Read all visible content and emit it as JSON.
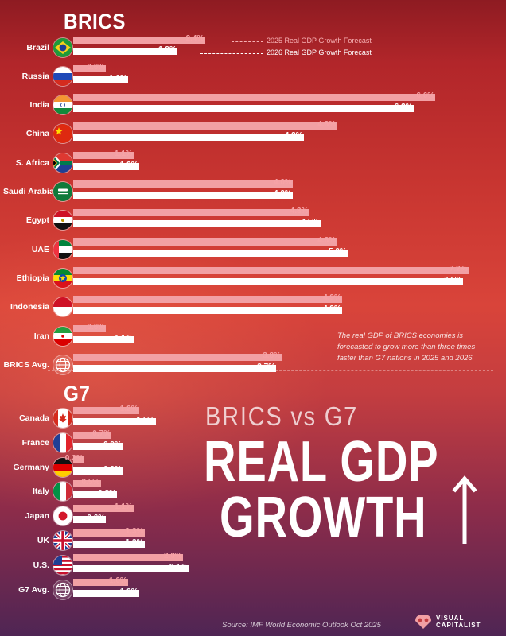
{
  "brics_title": "BRICS",
  "g7_title": "G7",
  "legend": {
    "y2025": "2025 Real GDP Growth Forecast",
    "y2026": "2026 Real GDP Growth Forecast"
  },
  "note": "The real GDP of BRICS economies is forecasted to grow more than three times faster than G7 nations in 2025 and 2026.",
  "subtitle": "BRICS vs G7",
  "title_line1": "REAL GDP",
  "title_line2": "GROWTH",
  "source": "Source: IMF World Economic Outlook Oct 2025",
  "brand": {
    "line1": "VISUAL",
    "line2": "CAPITALIST"
  },
  "colors": {
    "bar2025": "#f2a0a4",
    "bar2026": "#ffffff"
  },
  "chart_data": [
    {
      "type": "bar",
      "title": "BRICS",
      "orientation": "horizontal",
      "categories": [
        "Brazil",
        "Russia",
        "India",
        "China",
        "S. Africa",
        "Saudi Arabia",
        "Egypt",
        "UAE",
        "Ethiopia",
        "Indonesia",
        "Iran",
        "BRICS Avg."
      ],
      "flags": [
        "flag-brazil",
        "flag-russia",
        "flag-india",
        "flag-china",
        "flag-south-africa",
        "flag-saudi-arabia",
        "flag-egypt",
        "flag-uae",
        "flag-ethiopia",
        "flag-indonesia",
        "flag-iran",
        "globe-icon"
      ],
      "series": [
        {
          "name": "2025 Real GDP Growth Forecast",
          "values": [
            2.4,
            0.6,
            6.6,
            4.8,
            1.1,
            4.0,
            4.3,
            4.8,
            7.2,
            4.9,
            0.6,
            3.8
          ],
          "labels": [
            "2.4%",
            "0.6%",
            "6.6%",
            "4.8%",
            "1.1%",
            "4.0%",
            "4.3%",
            "4.8%",
            "7.2%",
            "4.9%",
            "0.6%",
            "3.8%"
          ]
        },
        {
          "name": "2026 Real GDP Growth Forecast",
          "values": [
            1.9,
            1.0,
            6.2,
            4.2,
            1.2,
            4.0,
            4.5,
            5.0,
            7.1,
            4.9,
            1.1,
            3.7
          ],
          "labels": [
            "1.9%",
            "1.0%",
            "6.2%",
            "4.2%",
            "1.2%",
            "4.0%",
            "4.5%",
            "5.0%",
            "7.1%",
            "4.9%",
            "1.1%",
            "3.7%"
          ]
        }
      ]
    },
    {
      "type": "bar",
      "title": "G7",
      "orientation": "horizontal",
      "categories": [
        "Canada",
        "France",
        "Germany",
        "Italy",
        "Japan",
        "UK",
        "U.S.",
        "G7 Avg."
      ],
      "flags": [
        "flag-canada",
        "flag-france",
        "flag-germany",
        "flag-italy",
        "flag-japan",
        "flag-uk",
        "flag-us",
        "globe-icon"
      ],
      "series": [
        {
          "name": "2025 Real GDP Growth Forecast",
          "values": [
            1.2,
            0.7,
            0.2,
            0.5,
            1.1,
            1.3,
            2.0,
            1.0
          ],
          "labels": [
            "1.2%",
            "0.7%",
            "0.2%",
            "0.5%",
            "1.1%",
            "1.3%",
            "2.0%",
            "1.0%"
          ]
        },
        {
          "name": "2026 Real GDP Growth Forecast",
          "values": [
            1.5,
            0.9,
            0.9,
            0.8,
            0.6,
            1.3,
            2.1,
            1.2
          ],
          "labels": [
            "1.5%",
            "0.9%",
            "0.9%",
            "0.8%",
            "0.6%",
            "1.3%",
            "2.1%",
            "1.2%"
          ]
        }
      ]
    }
  ]
}
